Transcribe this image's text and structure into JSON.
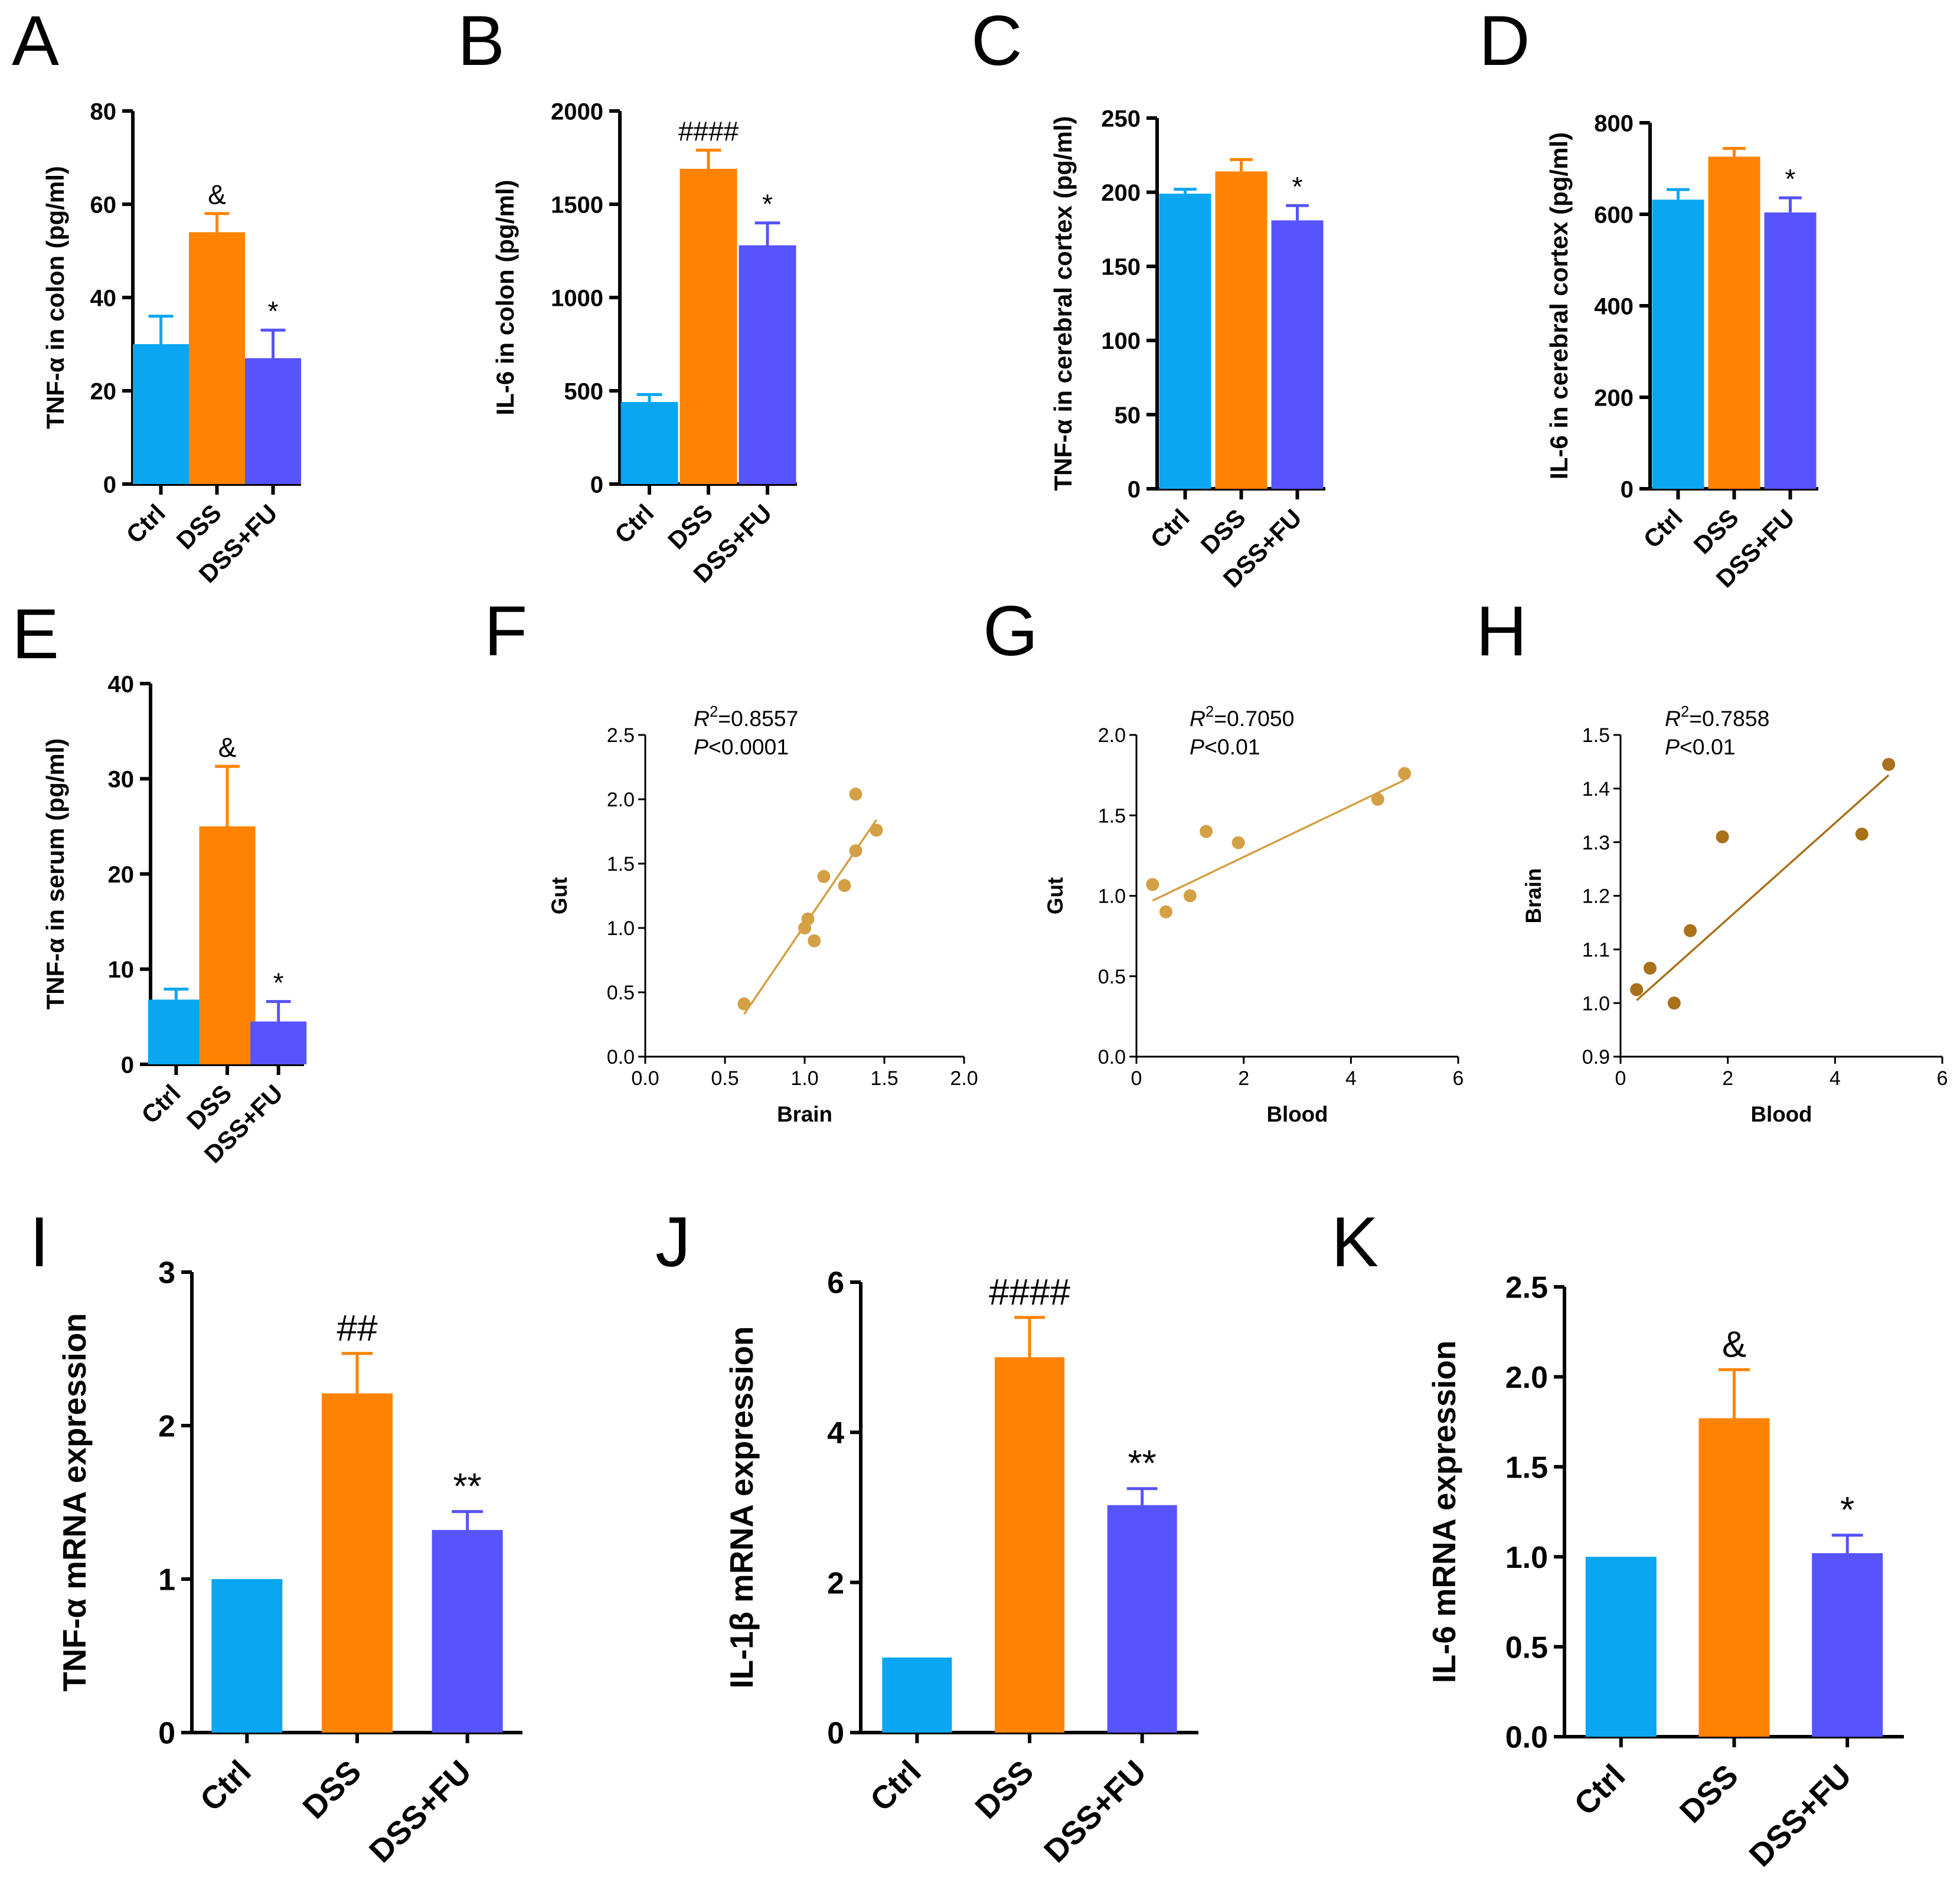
{
  "figure": {
    "description_colors": {
      "ctrl": "#0aa6f2",
      "dss": "#ff8200",
      "dssfu": "#5753fd",
      "err_ctrl": "#0aa6f2",
      "scatter": "#d4a045",
      "scatter_dark": "#a8711a"
    }
  },
  "chart_data": [
    {
      "id": "A",
      "type": "bar",
      "panel_label": "A",
      "ylabel": "TNF-α in colon (pg/ml)",
      "categories": [
        "Ctrl",
        "DSS",
        "DSS+FU"
      ],
      "values": [
        30,
        54,
        27
      ],
      "errors": [
        6,
        4,
        6
      ],
      "annotations": [
        "",
        "&",
        "*"
      ],
      "ylim": [
        0,
        80
      ],
      "yticks": [
        0,
        20,
        40,
        60,
        80
      ]
    },
    {
      "id": "B",
      "type": "bar",
      "panel_label": "B",
      "ylabel": "IL-6 in colon (pg/ml)",
      "categories": [
        "Ctrl",
        "DSS",
        "DSS+FU"
      ],
      "values": [
        440,
        1690,
        1280
      ],
      "errors": [
        40,
        100,
        120
      ],
      "annotations": [
        "",
        "####",
        "*"
      ],
      "ylim": [
        0,
        2000
      ],
      "yticks": [
        0,
        500,
        1000,
        1500,
        2000
      ]
    },
    {
      "id": "C",
      "type": "bar",
      "panel_label": "C",
      "ylabel": "TNF-α in cerebral cortex (pg/ml)",
      "categories": [
        "Ctrl",
        "DSS",
        "DSS+FU"
      ],
      "values": [
        199,
        214,
        181
      ],
      "errors": [
        3,
        8,
        10
      ],
      "annotations": [
        "",
        "",
        "*"
      ],
      "ylim": [
        0,
        250
      ],
      "yticks": [
        0,
        50,
        100,
        150,
        200,
        250
      ]
    },
    {
      "id": "D",
      "type": "bar",
      "panel_label": "D",
      "ylabel": "IL-6 in cerebral cortex (pg/ml)",
      "categories": [
        "Ctrl",
        "DSS",
        "DSS+FU"
      ],
      "values": [
        632,
        726,
        604
      ],
      "errors": [
        22,
        18,
        32
      ],
      "annotations": [
        "",
        "",
        "*"
      ],
      "ylim": [
        0,
        800
      ],
      "yticks": [
        0,
        200,
        400,
        600,
        800
      ]
    },
    {
      "id": "E",
      "type": "bar",
      "panel_label": "E",
      "ylabel": "TNF-α in serum (pg/ml)",
      "categories": [
        "Ctrl",
        "DSS",
        "DSS+FU"
      ],
      "values": [
        6.8,
        25,
        4.5
      ],
      "errors": [
        1.1,
        6.3,
        2.1
      ],
      "annotations": [
        "",
        "&",
        "*"
      ],
      "ylim": [
        0,
        40
      ],
      "yticks": [
        0,
        10,
        20,
        30,
        40
      ]
    },
    {
      "id": "F",
      "type": "scatter",
      "panel_label": "F",
      "xlabel": "Brain",
      "ylabel": "Gut",
      "x": [
        0.62,
        1.0,
        1.02,
        1.06,
        1.12,
        1.25,
        1.32,
        1.32,
        1.45
      ],
      "y": [
        0.41,
        1.0,
        1.07,
        0.9,
        1.4,
        1.33,
        2.04,
        1.6,
        1.76
      ],
      "fit": [
        [
          0.62,
          0.33
        ],
        [
          1.45,
          1.84
        ]
      ],
      "xlim": [
        0,
        2
      ],
      "ylim": [
        0,
        2.5
      ],
      "xticks": [
        "0.0",
        "0.5",
        "1.0",
        "1.5",
        "2.0"
      ],
      "yticks": [
        "0.0",
        "0.5",
        "1.0",
        "1.5",
        "2.0",
        "2.5"
      ],
      "stat_r2_label": "R",
      "stat_r2_sup": "2",
      "stat_r2_value": "=0.8557",
      "stat_p_label": "P",
      "stat_p_value": "<0.0001",
      "color": "#d4a045"
    },
    {
      "id": "G",
      "type": "scatter",
      "panel_label": "G",
      "xlabel": "Blood",
      "ylabel": "Gut",
      "x": [
        0.3,
        0.55,
        1.0,
        1.3,
        1.9,
        4.5,
        5.0
      ],
      "y": [
        1.07,
        0.9,
        1.0,
        1.4,
        1.33,
        1.6,
        1.76
      ],
      "fit": [
        [
          0.3,
          0.97
        ],
        [
          5.0,
          1.72
        ]
      ],
      "xlim": [
        0,
        6
      ],
      "ylim": [
        0,
        2.0
      ],
      "xticks": [
        "0",
        "2",
        "4",
        "6"
      ],
      "yticks": [
        "0.0",
        "0.5",
        "1.0",
        "1.5",
        "2.0"
      ],
      "stat_r2_label": "R",
      "stat_r2_sup": "2",
      "stat_r2_value": "=0.7050",
      "stat_p_label": "P",
      "stat_p_value": "<0.01",
      "color": "#d4a045"
    },
    {
      "id": "H",
      "type": "scatter",
      "panel_label": "H",
      "xlabel": "Blood",
      "ylabel": "Brain",
      "x": [
        0.3,
        0.55,
        1.0,
        1.3,
        1.9,
        4.5,
        5.0
      ],
      "y": [
        1.025,
        1.065,
        1.0,
        1.135,
        1.31,
        1.315,
        1.445
      ],
      "fit": [
        [
          0.3,
          1.005
        ],
        [
          5.0,
          1.425
        ]
      ],
      "xlim": [
        0,
        6
      ],
      "ylim": [
        0.9,
        1.5
      ],
      "xticks": [
        "0",
        "2",
        "4",
        "6"
      ],
      "yticks": [
        "0.9",
        "1.0",
        "1.1",
        "1.2",
        "1.3",
        "1.4",
        "1.5"
      ],
      "stat_r2_label": "R",
      "stat_r2_sup": "2",
      "stat_r2_value": "=0.7858",
      "stat_p_label": "P",
      "stat_p_value": "<0.01",
      "color": "#a8711a"
    },
    {
      "id": "I",
      "type": "bar",
      "panel_label": "I",
      "ylabel": "TNF-α mRNA expression",
      "categories": [
        "Ctrl",
        "DSS",
        "DSS+FU"
      ],
      "values": [
        1.0,
        2.21,
        1.32
      ],
      "errors": [
        0,
        0.26,
        0.12
      ],
      "annotations": [
        "",
        "##",
        "**"
      ],
      "ylim": [
        0,
        3
      ],
      "yticks": [
        0,
        1,
        2,
        3
      ]
    },
    {
      "id": "J",
      "type": "bar",
      "panel_label": "J",
      "ylabel": "IL-1β mRNA expression",
      "categories": [
        "Ctrl",
        "DSS",
        "DSS+FU"
      ],
      "values": [
        1.0,
        5.0,
        3.03
      ],
      "errors": [
        0,
        0.53,
        0.22
      ],
      "annotations": [
        "",
        "####",
        "**"
      ],
      "ylim": [
        0,
        6
      ],
      "yticks": [
        0,
        2,
        4,
        6
      ]
    },
    {
      "id": "K",
      "type": "bar",
      "panel_label": "K",
      "ylabel": "IL-6 mRNA expression",
      "categories": [
        "Ctrl",
        "DSS",
        "DSS+FU"
      ],
      "values": [
        1.0,
        1.77,
        1.02
      ],
      "errors": [
        0,
        0.27,
        0.1
      ],
      "annotations": [
        "",
        "&",
        "*"
      ],
      "ylim": [
        0,
        2.5
      ],
      "yticks": [
        "0.0",
        "0.5",
        "1.0",
        "1.5",
        "2.0",
        "2.5"
      ]
    }
  ]
}
